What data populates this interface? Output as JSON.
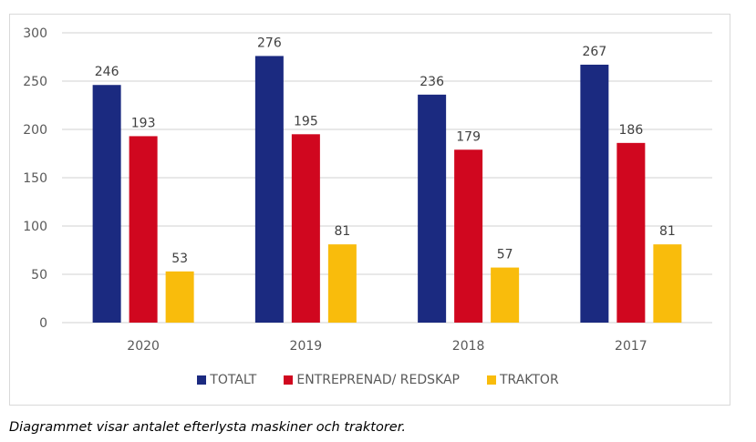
{
  "chart_data": {
    "type": "bar",
    "title": "",
    "xlabel": "",
    "ylabel": "",
    "categories": [
      "2020",
      "2019",
      "2018",
      "2017"
    ],
    "series": [
      {
        "name": "TOTALT",
        "color": "#1b2a80",
        "values": [
          246,
          276,
          236,
          267
        ]
      },
      {
        "name": "ENTREPRENAD/ REDSKAP",
        "color": "#d0071f",
        "values": [
          193,
          195,
          179,
          186
        ]
      },
      {
        "name": "TRAKTOR",
        "color": "#f9bc0c",
        "values": [
          53,
          81,
          57,
          81
        ]
      }
    ],
    "ylim": [
      0,
      300
    ],
    "yticks": [
      "0",
      "50",
      "100",
      "150",
      "200",
      "250",
      "300"
    ],
    "grid": true,
    "legend_position": "bottom",
    "data_labels": true
  },
  "caption": "Diagrammet visar antalet efterlysta maskiner och traktorer."
}
